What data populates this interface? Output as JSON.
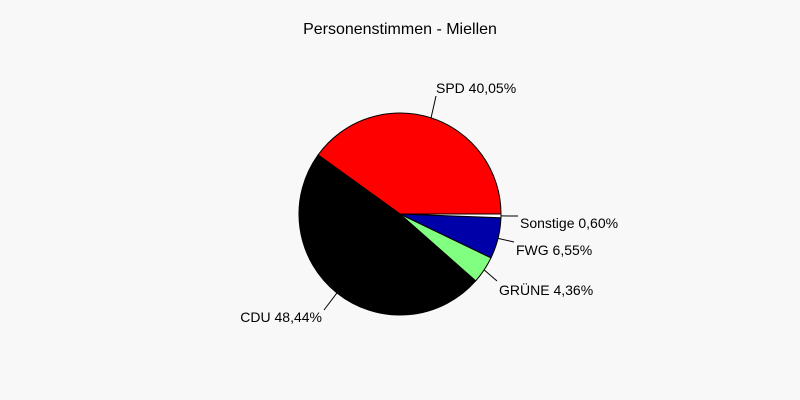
{
  "chart_data": {
    "type": "pie",
    "title": "Personenstimmen - Miellen",
    "slices": [
      {
        "label": "SPD 40,05%",
        "name": "SPD",
        "value": 40.05,
        "color": "#ff0000"
      },
      {
        "label": "Sonstige 0,60%",
        "name": "Sonstige",
        "value": 0.6,
        "color": "#ffffff"
      },
      {
        "label": "FWG 6,55%",
        "name": "FWG",
        "value": 6.55,
        "color": "#0000a8"
      },
      {
        "label": "GRÜNE 4,36%",
        "name": "GRÜNE",
        "value": 4.36,
        "color": "#80ff80"
      },
      {
        "label": "CDU 48,44%",
        "name": "CDU",
        "value": 48.44,
        "color": "#000000"
      }
    ],
    "legend": "none"
  }
}
